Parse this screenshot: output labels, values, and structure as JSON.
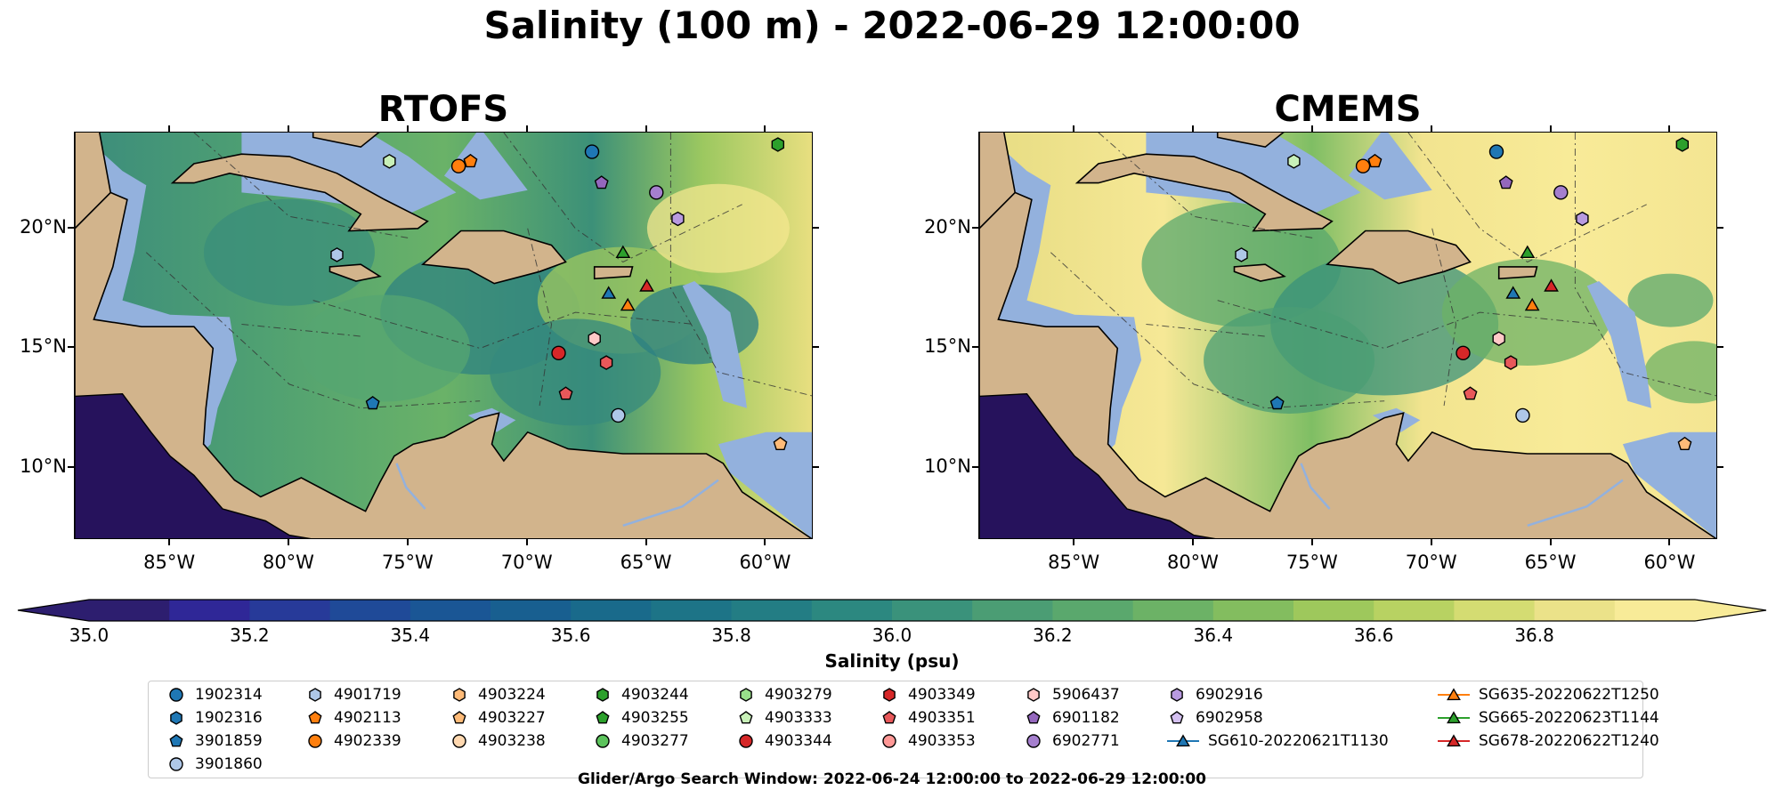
{
  "title": "Salinity (100 m) - 2022-06-29 12:00:00",
  "panels": [
    {
      "title": "RTOFS",
      "style": "rtofs"
    },
    {
      "title": "CMEMS",
      "style": "cmems"
    }
  ],
  "map": {
    "lon_range": [
      -89,
      -58
    ],
    "lat_range": [
      7,
      24
    ],
    "lon_ticks": [
      {
        "v": -85,
        "label": "85°W"
      },
      {
        "v": -80,
        "label": "80°W"
      },
      {
        "v": -75,
        "label": "75°W"
      },
      {
        "v": -70,
        "label": "70°W"
      },
      {
        "v": -65,
        "label": "65°W"
      },
      {
        "v": -60,
        "label": "60°W"
      }
    ],
    "lat_ticks": [
      {
        "v": 20,
        "label": "20°N"
      },
      {
        "v": 15,
        "label": "15°N"
      },
      {
        "v": 10,
        "label": "10°N"
      }
    ],
    "land_color": "#d2b48c",
    "shelf_color": "#93b1dd",
    "deep_color": "#26125c"
  },
  "colorbar": {
    "min": 35.0,
    "max": 36.9,
    "step": 0.1,
    "ticks": [
      "35.0",
      "35.2",
      "35.4",
      "35.6",
      "35.8",
      "36.0",
      "36.2",
      "36.4",
      "36.6",
      "36.8"
    ],
    "label": "Salinity (psu)",
    "colors": [
      "#2d1e6f",
      "#2f2797",
      "#273a99",
      "#1f4a98",
      "#1a5695",
      "#185f90",
      "#196a8b",
      "#1d7487",
      "#237d84",
      "#2c8880",
      "#3a927b",
      "#4b9d74",
      "#5aa86d",
      "#6cb266",
      "#83bd5f",
      "#9ec85c",
      "#b8d262",
      "#d4dc72",
      "#ebe289",
      "#f8eb98"
    ]
  },
  "window_text": "Glider/Argo Search Window: 2022-06-24 12:00:00 to 2022-06-29 12:00:00",
  "legend": [
    {
      "label": "1902314",
      "marker": "circle",
      "color": "#1f77b4"
    },
    {
      "label": "1902316",
      "marker": "hexagon",
      "color": "#1f77b4"
    },
    {
      "label": "3901859",
      "marker": "pentagon",
      "color": "#1f77b4"
    },
    {
      "label": "3901860",
      "marker": "circle",
      "color": "#aec7e8"
    },
    {
      "label": "4901719",
      "marker": "hexagon",
      "color": "#aec7e8"
    },
    {
      "label": "4902113",
      "marker": "pentagon",
      "color": "#ff7f0e"
    },
    {
      "label": "4902339",
      "marker": "circle",
      "color": "#ff7f0e"
    },
    {
      "label": "4903224",
      "marker": "hexagon",
      "color": "#ffbb78"
    },
    {
      "label": "4903227",
      "marker": "pentagon",
      "color": "#ffbb78"
    },
    {
      "label": "4903238",
      "marker": "circle",
      "color": "#ffd8b0"
    },
    {
      "label": "4903244",
      "marker": "hexagon",
      "color": "#2ca02c"
    },
    {
      "label": "4903255",
      "marker": "pentagon",
      "color": "#2ca02c"
    },
    {
      "label": "4903277",
      "marker": "circle",
      "color": "#5cc35c"
    },
    {
      "label": "4903279",
      "marker": "hexagon",
      "color": "#98df8a"
    },
    {
      "label": "4903333",
      "marker": "pentagon",
      "color": "#c8f0b8"
    },
    {
      "label": "4903344",
      "marker": "circle",
      "color": "#d62728"
    },
    {
      "label": "4903349",
      "marker": "hexagon",
      "color": "#d62728"
    },
    {
      "label": "4903351",
      "marker": "pentagon",
      "color": "#e8585a"
    },
    {
      "label": "4903353",
      "marker": "circle",
      "color": "#ff9896"
    },
    {
      "label": "5906437",
      "marker": "hexagon",
      "color": "#ffc9c7"
    },
    {
      "label": "6901182",
      "marker": "pentagon",
      "color": "#9467bd"
    },
    {
      "label": "6902771",
      "marker": "circle",
      "color": "#a57fce"
    },
    {
      "label": "6902916",
      "marker": "hexagon",
      "color": "#b89ae0"
    },
    {
      "label": "6902958",
      "marker": "pentagon",
      "color": "#d4c0f0"
    },
    {
      "label": "SG610-20220621T1130",
      "marker": "triangle-line",
      "color": "#1f77b4"
    },
    {
      "label": "SG635-20220622T1250",
      "marker": "triangle-line",
      "color": "#ff7f0e"
    },
    {
      "label": "SG665-20220623T1144",
      "marker": "triangle-line",
      "color": "#2ca02c"
    },
    {
      "label": "SG678-20220622T1240",
      "marker": "triangle-line",
      "color": "#d62728"
    }
  ],
  "points": [
    {
      "lon": -67.3,
      "lat": 23.2,
      "marker": "circle",
      "color": "#1f77b4"
    },
    {
      "lon": -59.5,
      "lat": 23.5,
      "marker": "hexagon",
      "color": "#2ca02c"
    },
    {
      "lon": -72.9,
      "lat": 22.6,
      "marker": "circle",
      "color": "#ff7f0e"
    },
    {
      "lon": -72.4,
      "lat": 22.8,
      "marker": "pentagon",
      "color": "#ff7f0e"
    },
    {
      "lon": -75.8,
      "lat": 22.8,
      "marker": "hexagon",
      "color": "#c8f0b8"
    },
    {
      "lon": -66.9,
      "lat": 21.9,
      "marker": "pentagon",
      "color": "#9467bd"
    },
    {
      "lon": -64.6,
      "lat": 21.5,
      "marker": "circle",
      "color": "#a57fce"
    },
    {
      "lon": -63.7,
      "lat": 20.4,
      "marker": "hexagon",
      "color": "#b89ae0"
    },
    {
      "lon": -78.0,
      "lat": 18.9,
      "marker": "hexagon",
      "color": "#aec7e8"
    },
    {
      "lon": -66.0,
      "lat": 19.0,
      "marker": "triangle",
      "color": "#2ca02c"
    },
    {
      "lon": -66.6,
      "lat": 17.3,
      "marker": "triangle",
      "color": "#1f77b4"
    },
    {
      "lon": -65.0,
      "lat": 17.6,
      "marker": "triangle",
      "color": "#d62728"
    },
    {
      "lon": -65.8,
      "lat": 16.8,
      "marker": "triangle",
      "color": "#ff7f0e"
    },
    {
      "lon": -67.2,
      "lat": 15.4,
      "marker": "hexagon",
      "color": "#ffc9c7"
    },
    {
      "lon": -68.7,
      "lat": 14.8,
      "marker": "circle",
      "color": "#d62728"
    },
    {
      "lon": -66.7,
      "lat": 14.4,
      "marker": "hexagon",
      "color": "#e8585a"
    },
    {
      "lon": -68.4,
      "lat": 13.1,
      "marker": "pentagon",
      "color": "#e8585a"
    },
    {
      "lon": -76.5,
      "lat": 12.7,
      "marker": "pentagon",
      "color": "#1f77b4"
    },
    {
      "lon": -66.2,
      "lat": 12.2,
      "marker": "circle",
      "color": "#aec7e8"
    },
    {
      "lon": -59.4,
      "lat": 11.0,
      "marker": "pentagon",
      "color": "#ffbb78"
    }
  ]
}
